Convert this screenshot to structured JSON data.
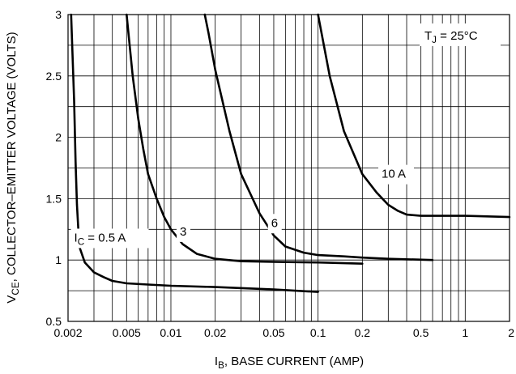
{
  "chart_data": {
    "type": "line",
    "x_scale": "log",
    "y_scale": "linear",
    "xlim": [
      0.002,
      2
    ],
    "ylim": [
      0.5,
      3
    ],
    "grid": true,
    "x_ticks": [
      0.002,
      0.005,
      0.01,
      0.02,
      0.05,
      0.1,
      0.2,
      0.5,
      1,
      2
    ],
    "x_tick_labels": [
      "0.002",
      "0.005",
      "0.01",
      "0.02",
      "0.05",
      "0.1",
      "0.2",
      "0.5",
      "1",
      "2"
    ],
    "y_ticks": [
      0.5,
      1,
      1.5,
      2,
      2.5,
      3
    ],
    "y_tick_labels": [
      "0.5",
      "1",
      "1.5",
      "2",
      "2.5",
      "3"
    ],
    "xlabel": {
      "main": "I",
      "sub": "B",
      "rest": ", BASE CURRENT (AMP)"
    },
    "ylabel": {
      "main": "V",
      "sub": "CE",
      "rest": ", COLLECTOR–EMITTER VOLTAGE (VOLTS)"
    },
    "annotation": {
      "main": "T",
      "sub": "J",
      "rest": " = 25°C"
    },
    "series": [
      {
        "name": {
          "main": "I",
          "sub": "C",
          "rest": " = 0.5 A"
        },
        "x": [
          0.0021,
          0.0022,
          0.00225,
          0.0023,
          0.00235,
          0.0024,
          0.0026,
          0.003,
          0.0035,
          0.004,
          0.005,
          0.007,
          0.01,
          0.02,
          0.05,
          0.1
        ],
        "y": [
          3.0,
          2.3,
          1.8,
          1.45,
          1.25,
          1.1,
          0.98,
          0.9,
          0.86,
          0.83,
          0.81,
          0.8,
          0.79,
          0.78,
          0.76,
          0.74
        ]
      },
      {
        "name": "3",
        "x": [
          0.005,
          0.0055,
          0.006,
          0.0065,
          0.007,
          0.008,
          0.009,
          0.01,
          0.012,
          0.015,
          0.02,
          0.03,
          0.05,
          0.1,
          0.2
        ],
        "y": [
          3.0,
          2.5,
          2.15,
          1.9,
          1.7,
          1.5,
          1.35,
          1.25,
          1.13,
          1.05,
          1.01,
          0.99,
          0.985,
          0.98,
          0.97
        ]
      },
      {
        "name": "6",
        "x": [
          0.017,
          0.018,
          0.02,
          0.025,
          0.03,
          0.04,
          0.05,
          0.06,
          0.08,
          0.1,
          0.15,
          0.2,
          0.3,
          0.6
        ],
        "y": [
          3.0,
          2.85,
          2.55,
          2.05,
          1.7,
          1.38,
          1.2,
          1.11,
          1.06,
          1.04,
          1.03,
          1.02,
          1.01,
          1.0
        ]
      },
      {
        "name": "10 A",
        "x": [
          0.1,
          0.12,
          0.15,
          0.2,
          0.25,
          0.3,
          0.35,
          0.4,
          0.5,
          0.7,
          1,
          2
        ],
        "y": [
          3.0,
          2.5,
          2.05,
          1.7,
          1.55,
          1.45,
          1.4,
          1.37,
          1.36,
          1.36,
          1.36,
          1.35
        ]
      }
    ],
    "series_label_anchors": [
      {
        "x": 0.0022,
        "y": 1.15
      },
      {
        "x": 0.0115,
        "y": 1.2
      },
      {
        "x": 0.048,
        "y": 1.27
      },
      {
        "x": 0.27,
        "y": 1.67
      }
    ]
  }
}
